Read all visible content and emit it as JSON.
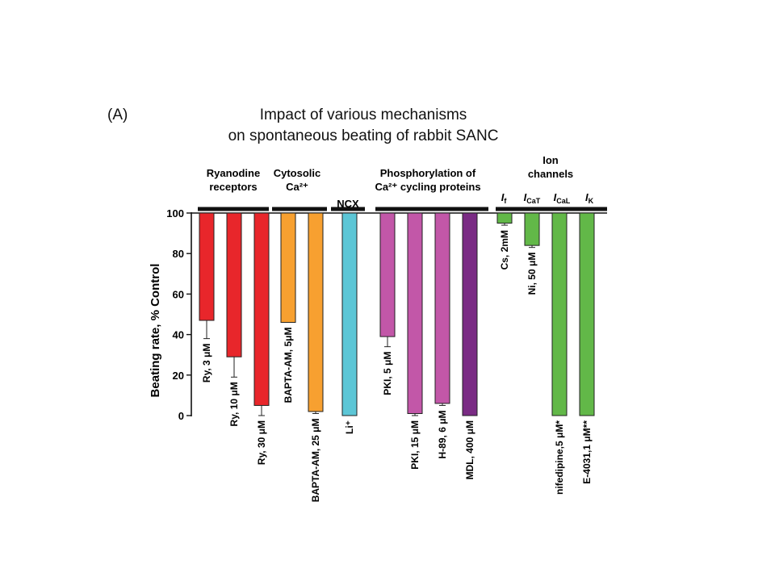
{
  "panel_label": "(A)",
  "title_line1": "Impact of various mechanisms",
  "title_line2": "on spontaneous beating of rabbit SANC",
  "chart_data": {
    "type": "bar",
    "title": "Impact of various mechanisms on spontaneous beating of rabbit SANC",
    "ylabel": "Beating rate, % Control",
    "ylim": [
      0,
      100
    ],
    "yticks": [
      0,
      20,
      40,
      60,
      80,
      100
    ],
    "grid": false,
    "categories": [
      "Ry, 3 μM",
      "Ry, 10 μM",
      "Ry, 30 μM",
      "BAPTA-AM, 5μM",
      "BAPTA-AM, 25 μM",
      "Li⁺",
      "PKI, 5 μM",
      "PKI, 15 μM",
      "H-89, 6 μM",
      "MDL, 400 μM",
      "Cs, 2mM",
      "Ni, 50 μM",
      "nifedipine,5 μM*",
      "E-4031,1 μM**"
    ],
    "values": [
      47,
      29,
      5,
      46,
      2,
      0,
      39,
      1,
      6,
      0,
      95,
      84,
      0,
      0
    ],
    "errors": [
      9,
      10,
      5,
      0,
      1,
      0,
      5,
      1,
      1,
      0,
      1,
      1,
      0,
      0
    ],
    "colors": [
      "#e8262b",
      "#e8262b",
      "#e8262b",
      "#f7a030",
      "#f7a030",
      "#5cc6d6",
      "#c257a8",
      "#c257a8",
      "#c257a8",
      "#7a2b84",
      "#62b848",
      "#62b848",
      "#62b848",
      "#62b848"
    ],
    "groups": [
      {
        "label_lines": [
          "Ryanodine",
          "receptors"
        ]
      },
      {
        "label_lines": [
          "Cytosolic",
          "Ca²⁺"
        ]
      },
      {
        "label_lines": [
          "NCX"
        ]
      },
      {
        "label_lines": [
          "Phosphorylation of",
          "Ca²⁺ cycling proteins"
        ]
      },
      {
        "label_lines": [
          "Ion",
          "channels"
        ],
        "sub_labels": [
          "If",
          "ICaT",
          "ICaL",
          "IK"
        ]
      }
    ]
  }
}
